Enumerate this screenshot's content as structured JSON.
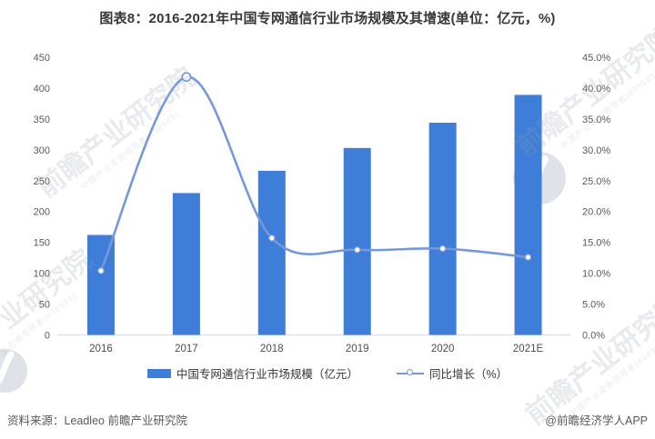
{
  "title": "图表8：2016-2021年中国专网通信行业市场规模及其增速(单位：亿元，%)",
  "chart_data": {
    "type": "combo-bar-line",
    "categories": [
      "2016",
      "2017",
      "2018",
      "2019",
      "2020",
      "2021E"
    ],
    "series": [
      {
        "name": "中国专网通信行业市场规模（亿元）",
        "type": "bar",
        "axis": "left",
        "color": "#3e7dd8",
        "values": [
          162,
          230,
          266,
          303,
          344,
          389
        ]
      },
      {
        "name": "同比增长（%）",
        "type": "line",
        "axis": "right",
        "color": "#7499db",
        "marker": "circle-white-fill",
        "values": [
          10.4,
          41.8,
          15.7,
          13.8,
          14.0,
          12.6
        ]
      }
    ],
    "left_axis": {
      "min": 0,
      "max": 450,
      "step": 50,
      "ticks": [
        "0",
        "50",
        "100",
        "150",
        "200",
        "250",
        "300",
        "350",
        "400",
        "450"
      ]
    },
    "right_axis": {
      "min": 0,
      "max": 45,
      "step": 5,
      "ticks": [
        "0.0%",
        "5.0%",
        "10.0%",
        "15.0%",
        "20.0%",
        "25.0%",
        "30.0%",
        "35.0%",
        "40.0%",
        "45.0%"
      ]
    },
    "grid": "off",
    "legend_position": "bottom",
    "baseline_color": "#d9d9d9",
    "tick_color": "#595959"
  },
  "footer": {
    "source": "资料来源：Leadleo 前瞻产业研究院",
    "credit": "@前瞻经济学人APP"
  },
  "watermark": {
    "text": "前瞻产业研究院",
    "subtext": "中国产业咨询领导者(839599)"
  }
}
